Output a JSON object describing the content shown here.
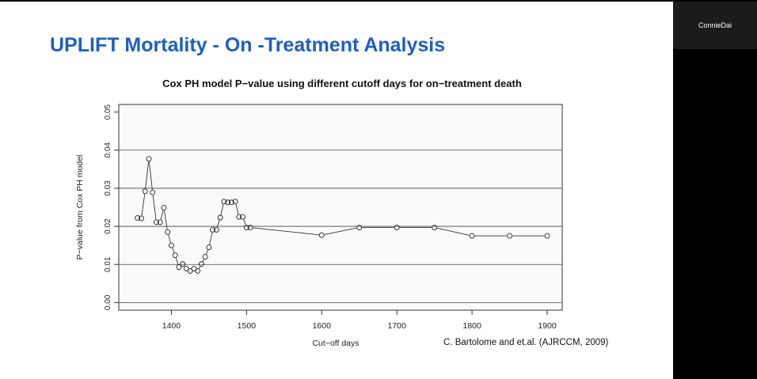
{
  "slide": {
    "title": "UPLIFT Mortality - On -Treatment Analysis",
    "citation": "C. Bartolome and et.al. (AJRCCM, 2009)"
  },
  "participant": {
    "name": "ConnieDai"
  },
  "colors": {
    "title": "#1f5fbf",
    "background": "#ffffff",
    "panel": "#000000",
    "tile": "#1b1b1b"
  },
  "chart_data": {
    "type": "line",
    "title": "Cox PH model P−value using different cutoff days for on−treatment death",
    "xlabel": "Cut−off days",
    "ylabel": "P−value from Cox PH model",
    "xlim": [
      1330,
      1920
    ],
    "ylim": [
      -0.002,
      0.052
    ],
    "x_ticks": [
      1400,
      1500,
      1600,
      1700,
      1800,
      1900
    ],
    "x_tick_labels": [
      "1400",
      "1500",
      "1600",
      "1700",
      "1800",
      "1900"
    ],
    "y_ticks": [
      0.0,
      0.01,
      0.02,
      0.03,
      0.04,
      0.05
    ],
    "y_tick_labels": [
      "0.00",
      "0.01",
      "0.02",
      "0.03",
      "0.04",
      "0.05"
    ],
    "grid": "horizontal",
    "marker": "open-circle",
    "series": [
      {
        "x": [
          1355,
          1360,
          1365,
          1370,
          1375,
          1380,
          1385,
          1390,
          1395,
          1400,
          1405,
          1410,
          1415,
          1420,
          1425,
          1430,
          1435,
          1440,
          1445,
          1450,
          1455,
          1460,
          1465,
          1470,
          1475,
          1480,
          1485,
          1490,
          1495,
          1500,
          1505,
          1600,
          1650,
          1700,
          1750,
          1800,
          1850,
          1900
        ],
        "values": [
          0.0222,
          0.0221,
          0.0292,
          0.0377,
          0.0289,
          0.0211,
          0.0211,
          0.0249,
          0.0185,
          0.015,
          0.0124,
          0.0093,
          0.0101,
          0.0089,
          0.0083,
          0.0089,
          0.0083,
          0.0101,
          0.012,
          0.0145,
          0.0191,
          0.0191,
          0.0223,
          0.0265,
          0.0263,
          0.0263,
          0.0265,
          0.0225,
          0.0225,
          0.0197,
          0.0197,
          0.0177,
          0.0197,
          0.0197,
          0.0197,
          0.0175,
          0.0175,
          0.0175
        ]
      }
    ]
  }
}
